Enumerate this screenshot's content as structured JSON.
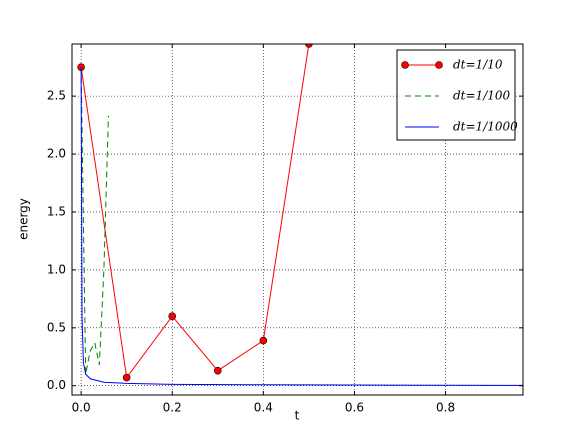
{
  "chart_data": {
    "type": "line",
    "xlabel": "t",
    "ylabel": "energy",
    "xlim": [
      -0.02,
      0.97
    ],
    "ylim": [
      -0.08,
      2.95
    ],
    "xticks": [
      {
        "value": 0,
        "label": "0.0"
      },
      0.2,
      0.4,
      0.6,
      0.8
    ],
    "yticks": [
      {
        "value": 0,
        "label": "0.0"
      },
      0.5,
      {
        "value": 1,
        "label": "1.0"
      },
      1.5,
      {
        "value": 2,
        "label": "2.0"
      },
      2.5
    ],
    "grid": true,
    "legend": "upper right",
    "series": [
      {
        "name": "dt=1/10",
        "color": "#ff0000",
        "style": "solid",
        "marker": "circle",
        "x": [
          0,
          0.1,
          0.2,
          0.3,
          0.4,
          0.5
        ],
        "values": [
          2.75,
          0.07,
          0.6,
          0.13,
          0.39,
          2.95
        ]
      },
      {
        "name": "dt=1/100",
        "color": "#008000",
        "style": "dashed",
        "x": [
          0,
          0.01,
          0.02,
          0.03,
          0.04,
          0.05,
          0.06
        ],
        "values": [
          2.75,
          0.1,
          0.3,
          0.37,
          0.18,
          1.0,
          2.33
        ]
      },
      {
        "name": "dt=1/1000",
        "color": "#0000ff",
        "style": "solid",
        "x": [
          0,
          0.002,
          0.005,
          0.01,
          0.02,
          0.05,
          0.1,
          0.2,
          0.4,
          0.6,
          0.8,
          0.97
        ],
        "values": [
          2.75,
          0.6,
          0.2,
          0.1,
          0.06,
          0.03,
          0.02,
          0.012,
          0.008,
          0.006,
          0.004,
          0.003
        ]
      }
    ]
  }
}
